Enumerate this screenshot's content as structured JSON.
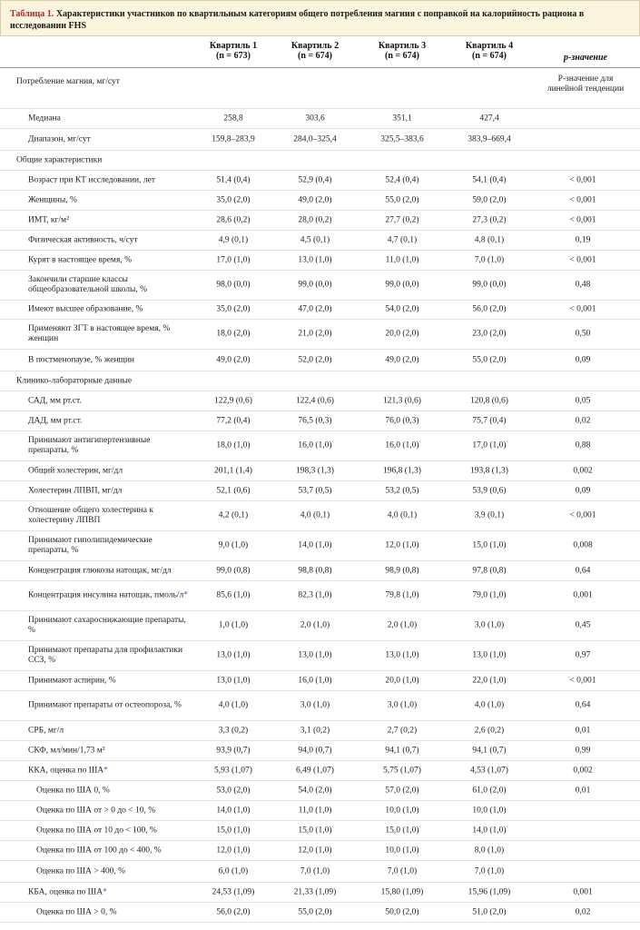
{
  "caption": {
    "lead": "Таблица 1.",
    "text": "Характеристики участников по квартильным категориям общего потребления магния с поправкой на калорийность рациона в исследовании FHS"
  },
  "header": {
    "q1": {
      "name": "Квартиль 1",
      "n": "(n = 673)"
    },
    "q2": {
      "name": "Квартиль 2",
      "n": "(n = 674)"
    },
    "q3": {
      "name": "Квартиль 3",
      "n": "(n = 674)"
    },
    "q4": {
      "name": "Квартиль 4",
      "n": "(n = 674)"
    },
    "p": "p-значение"
  },
  "p_note": "P-значение для линейной тенденции",
  "rows": [
    {
      "label": "Потребление магния, мг/сут",
      "level": 0,
      "values": [
        "",
        "",
        "",
        ""
      ],
      "p": "",
      "h": 46
    },
    {
      "label": "Медиана",
      "level": 1,
      "values": [
        "258,8",
        "303,6",
        "351,1",
        "427,4"
      ],
      "p": "",
      "h": 22
    },
    {
      "label": "Диапазон, мг/сут",
      "level": 1,
      "values": [
        "159,8–283,9",
        "284,0–325,4",
        "325,5–383,6",
        "383,9–669,4"
      ],
      "p": "",
      "h": 24
    },
    {
      "label": "Общие характеристики",
      "level": 0,
      "values": [
        "",
        "",
        "",
        ""
      ],
      "p": "",
      "h": 22
    },
    {
      "label": "Возраст при КТ исследовании, лет",
      "level": 1,
      "values": [
        "51,4 (0,4)",
        "52,9 (0,4)",
        "52,4 (0,4)",
        "54,1 (0,4)"
      ],
      "p": "< 0,001",
      "h": 22
    },
    {
      "label": "Женщины, %",
      "level": 1,
      "values": [
        "35,0 (2,0)",
        "49,0 (2,0)",
        "55,0 (2,0)",
        "59,0 (2,0)"
      ],
      "p": "< 0,001",
      "h": 22
    },
    {
      "label": "ИМТ, кг/м²",
      "level": 1,
      "values": [
        "28,6 (0,2)",
        "28,0 (0,2)",
        "27,7 (0,2)",
        "27,3 (0,2)"
      ],
      "p": "< 0,001",
      "h": 22
    },
    {
      "label": "Физическая активность, ч/сут",
      "level": 1,
      "values": [
        "4,9 (0,1)",
        "4,5 (0,1)",
        "4,7 (0,1)",
        "4,8 (0,1)"
      ],
      "p": "0,19",
      "h": 22
    },
    {
      "label": "Курят в настоящее время, %",
      "level": 1,
      "values": [
        "17,0 (1,0)",
        "13,0 (1,0)",
        "11,0 (1,0)",
        "7,0 (1,0)"
      ],
      "p": "< 0,001",
      "h": 22
    },
    {
      "label": "Закончили старшие классы общеобразовательной школы, %",
      "level": 1,
      "values": [
        "98,0 (0,0)",
        "99,0 (0,0)",
        "99,0 (0,0)",
        "99,0 (0,0)"
      ],
      "p": "0,48",
      "h": 33
    },
    {
      "label": "Имеют высшее образование, %",
      "level": 1,
      "values": [
        "35,0 (2,0)",
        "47,0 (2,0)",
        "54,0 (2,0)",
        "56,0 (2,0)"
      ],
      "p": "< 0,001",
      "h": 21
    },
    {
      "label": "Применяют ЗГТ в настоящее время, % женщин",
      "level": 1,
      "values": [
        "18,0 (2,0)",
        "21,0 (2,0)",
        "20,0 (2,0)",
        "23,0 (2,0)"
      ],
      "p": "0,50",
      "h": 33
    },
    {
      "label": "В постменопаузе, % женщин",
      "level": 1,
      "values": [
        "49,0 (2,0)",
        "52,0 (2,0)",
        "49,0 (2,0)",
        "55,0 (2,0)"
      ],
      "p": "0,09",
      "h": 24
    },
    {
      "label": "Клинико-лабораторные данные",
      "level": 0,
      "values": [
        "",
        "",
        "",
        ""
      ],
      "p": "",
      "h": 22
    },
    {
      "label": "САД, мм рт.ст.",
      "level": 1,
      "values": [
        "122,9 (0,6)",
        "122,4 (0,6)",
        "121,3 (0,6)",
        "120,8 (0,6)"
      ],
      "p": "0,05",
      "h": 22
    },
    {
      "label": "ДАД, мм рт.ст.",
      "level": 1,
      "values": [
        "77,2 (0,4)",
        "76,5 (0,3)",
        "76,0 (0,3)",
        "75,7 (0,4)"
      ],
      "p": "0,02",
      "h": 22
    },
    {
      "label": "Принимают антигипертензивные препараты, %",
      "level": 1,
      "values": [
        "18,0 (1,0)",
        "16,0 (1,0)",
        "16,0 (1,0)",
        "17,0 (1,0)"
      ],
      "p": "0,88",
      "h": 33
    },
    {
      "label": "Общий холестерин, мг/дл",
      "level": 1,
      "values": [
        "201,1 (1,4)",
        "198,3 (1,3)",
        "196,8 (1,3)",
        "193,8 (1,3)"
      ],
      "p": "0,002",
      "h": 22
    },
    {
      "label": "Холестерин ЛПВП, мг/дл",
      "level": 1,
      "values": [
        "52,1 (0,6)",
        "53,7 (0,5)",
        "53,2 (0,5)",
        "53,9 (0,6)"
      ],
      "p": "0,09",
      "h": 22
    },
    {
      "label": "Отношение общего холестерина к холестерину ЛПВП",
      "level": 1,
      "values": [
        "4,2 (0,1)",
        "4,0 (0,1)",
        "4,0 (0,1)",
        "3,9 (0,1)"
      ],
      "p": "< 0,001",
      "h": 33
    },
    {
      "label": "Принимают гиполипидемические препараты, %",
      "level": 1,
      "values": [
        "9,0 (1,0)",
        "14,0 (1,0)",
        "12,0 (1,0)",
        "15,0 (1,0)"
      ],
      "p": "0,008",
      "h": 33
    },
    {
      "label": "Концентрация глюкозы натощак, мг/дл",
      "level": 1,
      "values": [
        "99,0 (0,8)",
        "98,8 (0,8)",
        "98,9 (0,8)",
        "97,8 (0,8)"
      ],
      "p": "0,64",
      "h": 22
    },
    {
      "label": "Концентрация инсулина натощак, пмоль/л",
      "sup": "*",
      "level": 1,
      "values": [
        "85,6 (1,0)",
        "82,3 (1,0)",
        "79,8 (1,0)",
        "79,0 (1,0)"
      ],
      "p": "0,001",
      "h": 33
    },
    {
      "label": "Принимают сахароснижающие препараты, %",
      "level": 1,
      "values": [
        "1,0 (1,0)",
        "2,0 (1,0)",
        "2,0 (1,0)",
        "3,0 (1,0)"
      ],
      "p": "0,45",
      "h": 33
    },
    {
      "label": "Принимают препараты для профилактики ССЗ, %",
      "level": 1,
      "values": [
        "13,0 (1,0)",
        "13,0 (1,0)",
        "13,0 (1,0)",
        "13,0 (1,0)"
      ],
      "p": "0,97",
      "h": 33
    },
    {
      "label": "Принимают аспирин, %",
      "level": 1,
      "values": [
        "13,0 (1,0)",
        "16,0 (1,0)",
        "20,0 (1,0)",
        "22,0 (1,0)"
      ],
      "p": "< 0,001",
      "h": 22
    },
    {
      "label": "Принимают препараты от остеопороза, %",
      "level": 1,
      "values": [
        "4,0 (1,0)",
        "3,0 (1,0)",
        "3,0 (1,0)",
        "4,0 (1,0)"
      ],
      "p": "0,64",
      "h": 33
    },
    {
      "label": "СРБ, мг/л",
      "level": 1,
      "values": [
        "3,3 (0,2)",
        "3,1 (0,2)",
        "2,7 (0,2)",
        "2,6 (0,2)"
      ],
      "p": "0,01",
      "h": 22
    },
    {
      "label": "СКФ, мл/мин/1,73 м²",
      "level": 1,
      "values": [
        "93,9 (0,7)",
        "94,0 (0,7)",
        "94,1 (0,7)",
        "94,1 (0,7)"
      ],
      "p": "0,99",
      "h": 22
    },
    {
      "label": "ККА, оценка по ША",
      "sup": "*",
      "level": 1,
      "values": [
        "5,93 (1,07)",
        "6,49 (1,07)",
        "5,75 (1,07)",
        "4,53 (1,07)"
      ],
      "p": "0,002",
      "h": 22
    },
    {
      "label": "Оценка по ША 0, %",
      "level": 2,
      "values": [
        "53,0 (2,0)",
        "54,0 (2,0)",
        "57,0 (2,0)",
        "61,0 (2,0)"
      ],
      "p": "0,01",
      "h": 22
    },
    {
      "label": "Оценка по ША от > 0 до < 10, %",
      "level": 2,
      "values": [
        "14,0 (1,0)",
        "11,0 (1,0)",
        "10,0 (1,0)",
        "10,0 (1,0)"
      ],
      "p": "",
      "h": 22
    },
    {
      "label": "Оценка по ША от 10 до < 100, %",
      "level": 2,
      "values": [
        "15,0 (1,0)",
        "15,0 (1,0)",
        "15,0 (1,0)",
        "14,0 (1,0)"
      ],
      "p": "",
      "h": 22
    },
    {
      "label": "Оценка по ША от 100 до < 400, %",
      "level": 2,
      "values": [
        "12,0 (1,0)",
        "12,0 (1,0)",
        "10,0 (1,0)",
        "8,0 (1,0)"
      ],
      "p": "",
      "h": 22
    },
    {
      "label": "Оценка по ША > 400, %",
      "level": 2,
      "values": [
        "6,0 (1,0)",
        "7,0 (1,0)",
        "7,0 (1,0)",
        "7,0 (1,0)"
      ],
      "p": "",
      "h": 24
    },
    {
      "label": "КБА, оценка по ША",
      "sup": "*",
      "level": 1,
      "values": [
        "24,53 (1,09)",
        "21,33 (1,09)",
        "15,80 (1,09)",
        "15,96 (1,09)"
      ],
      "p": "0,001",
      "h": 22
    },
    {
      "label": "Оценка по ША > 0, %",
      "level": 2,
      "values": [
        "56,0 (2,0)",
        "55,0 (2,0)",
        "50,0 (2,0)",
        "51,0 (2,0)"
      ],
      "p": "0,02",
      "h": 22
    }
  ]
}
